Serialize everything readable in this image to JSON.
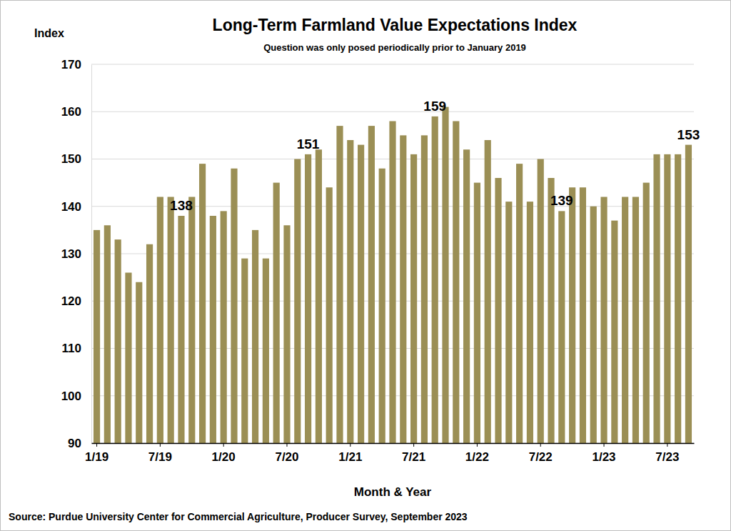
{
  "chart_data": {
    "type": "bar",
    "title": "Long-Term Farmland Value Expectations Index",
    "subtitle": "Question was only posed periodically prior to January 2019",
    "y_label": "Index",
    "x_label": "Month & Year",
    "source": "Source: Purdue University Center for Commercial Agriculture, Producer Survey, September 2023",
    "categories": [
      "1/19",
      null,
      null,
      null,
      null,
      null,
      "7/19",
      null,
      null,
      null,
      null,
      null,
      "1/20",
      null,
      null,
      null,
      null,
      null,
      "7/20",
      null,
      null,
      null,
      null,
      null,
      "1/21",
      null,
      null,
      null,
      null,
      null,
      "7/21",
      null,
      null,
      null,
      null,
      null,
      "1/22",
      null,
      null,
      null,
      null,
      null,
      "7/22",
      null,
      null,
      null,
      null,
      null,
      "1/23",
      null,
      null,
      null,
      null,
      null,
      "7/23",
      null,
      null
    ],
    "values": [
      135,
      136,
      133,
      126,
      124,
      132,
      142,
      142,
      138,
      142,
      149,
      138,
      139,
      148,
      129,
      135,
      129,
      145,
      136,
      150,
      151,
      152,
      144,
      157,
      154,
      153,
      157,
      148,
      158,
      155,
      151,
      155,
      159,
      161,
      158,
      152,
      145,
      154,
      146,
      141,
      149,
      141,
      150,
      146,
      139,
      144,
      144,
      140,
      142,
      137,
      142,
      142,
      145,
      151,
      151,
      151,
      153
    ],
    "data_labels": true,
    "value_labels": [
      null,
      null,
      null,
      null,
      null,
      null,
      null,
      null,
      "138",
      null,
      null,
      null,
      null,
      null,
      null,
      null,
      null,
      null,
      null,
      null,
      "151",
      null,
      null,
      null,
      null,
      null,
      null,
      null,
      null,
      null,
      null,
      null,
      "159",
      null,
      null,
      null,
      null,
      null,
      null,
      null,
      null,
      null,
      null,
      null,
      "139",
      null,
      null,
      null,
      null,
      null,
      null,
      null,
      null,
      null,
      null,
      null,
      "153"
    ],
    "color": "#9b8f55",
    "ylim": [
      90,
      170
    ],
    "yticks": [
      90,
      100,
      110,
      120,
      130,
      140,
      150,
      160,
      170
    ],
    "grid": true
  }
}
